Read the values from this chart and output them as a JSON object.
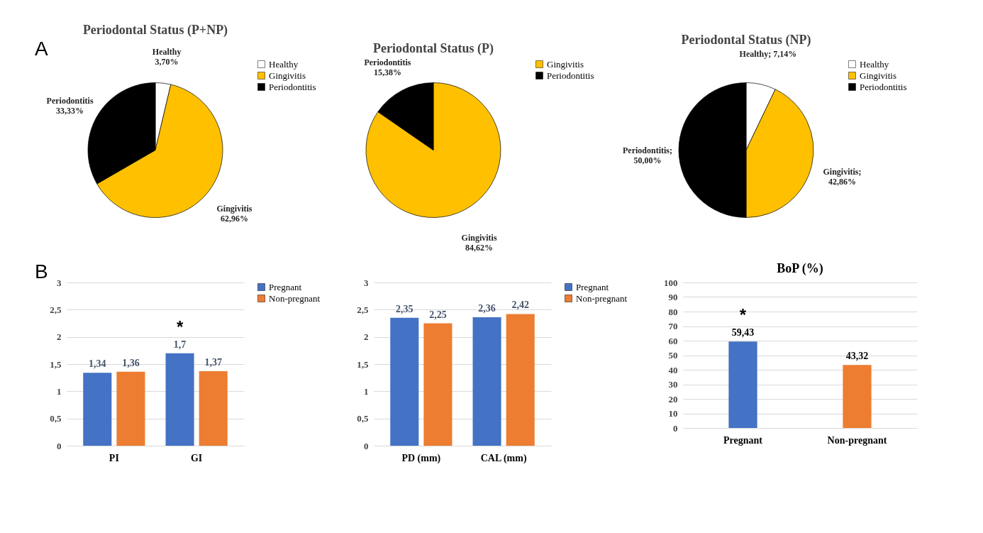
{
  "chart_data": [
    {
      "type": "pie",
      "title": "Periodontal Status (P+NP)",
      "categories": [
        "Healthy",
        "Gingivitis",
        "Periodontitis"
      ],
      "values": [
        3.7,
        62.96,
        33.33
      ],
      "colors": [
        "#ffffff",
        "#ffc000",
        "#000000"
      ],
      "value_labels": [
        "Healthy\n3,70%",
        "Gingivitis\n62,96%",
        "Periodontitis\n33,33%"
      ],
      "legend": "right",
      "annotations": [
        "A"
      ]
    },
    {
      "type": "pie",
      "title": "Periodontal Status (P)",
      "categories": [
        "Gingivitis",
        "Periodontitis"
      ],
      "values": [
        84.62,
        15.38
      ],
      "colors": [
        "#ffc000",
        "#000000"
      ],
      "value_labels": [
        "Gingivitis\n84,62%",
        "Periodontitis\n15,38%"
      ],
      "legend": "right"
    },
    {
      "type": "pie",
      "title": "Periodontal Status (NP)",
      "categories": [
        "Healthy",
        "Gingivitis",
        "Periodontitis"
      ],
      "values": [
        7.14,
        42.86,
        50.0
      ],
      "colors": [
        "#ffffff",
        "#ffc000",
        "#000000"
      ],
      "value_labels": [
        "Healthy; 7,14%",
        "Gingivitis;\n42,86%",
        "Periodontitis;\n50,00%"
      ],
      "legend": "right"
    },
    {
      "type": "bar",
      "categories": [
        "PI",
        "GI"
      ],
      "series": [
        {
          "name": "Pregnant",
          "color": "#4472c4",
          "values": [
            1.34,
            1.7
          ],
          "value_labels": [
            "1,34",
            "1,7"
          ]
        },
        {
          "name": "Non-pregnant",
          "color": "#ed7d31",
          "values": [
            1.36,
            1.37
          ],
          "value_labels": [
            "1,36",
            "1,37"
          ]
        }
      ],
      "ylim": [
        0,
        3
      ],
      "yticks": [
        0,
        {
          "value": 0.5,
          "label": "0,5"
        },
        1,
        {
          "value": 1.5,
          "label": "1,5"
        },
        2,
        {
          "value": 2.5,
          "label": "2,5"
        },
        3
      ],
      "grid": "y",
      "legend": "right",
      "annotations": [
        "B",
        {
          "text": "*",
          "x": "GI",
          "y": 1.7
        }
      ]
    },
    {
      "type": "bar",
      "categories": [
        "PD (mm)",
        "CAL (mm)"
      ],
      "series": [
        {
          "name": "Pregnant",
          "color": "#4472c4",
          "values": [
            2.35,
            2.36
          ],
          "value_labels": [
            "2,35",
            "2,36"
          ]
        },
        {
          "name": "Non-pregnant",
          "color": "#ed7d31",
          "values": [
            2.25,
            2.42
          ],
          "value_labels": [
            "2,25",
            "2,42"
          ]
        }
      ],
      "ylim": [
        0,
        3
      ],
      "yticks": [
        0,
        {
          "value": 0.5,
          "label": "0,5"
        },
        1,
        {
          "value": 1.5,
          "label": "1,5"
        },
        2,
        {
          "value": 2.5,
          "label": "2,5"
        },
        3
      ],
      "grid": "y",
      "legend": "right"
    },
    {
      "type": "bar",
      "title": "BoP (%)",
      "categories": [
        "Pregnant",
        "Non-pregnant"
      ],
      "values": [
        59.43,
        43.32
      ],
      "colors": [
        "#4472c4",
        "#ed7d31"
      ],
      "value_labels": [
        "59,43",
        "43,32"
      ],
      "ylim": [
        0,
        100
      ],
      "yticks": [
        0,
        10,
        20,
        30,
        40,
        50,
        60,
        70,
        80,
        90,
        100
      ],
      "grid": "y",
      "annotations": [
        {
          "text": "*",
          "x": "Pregnant",
          "y": 59.43
        }
      ]
    }
  ]
}
